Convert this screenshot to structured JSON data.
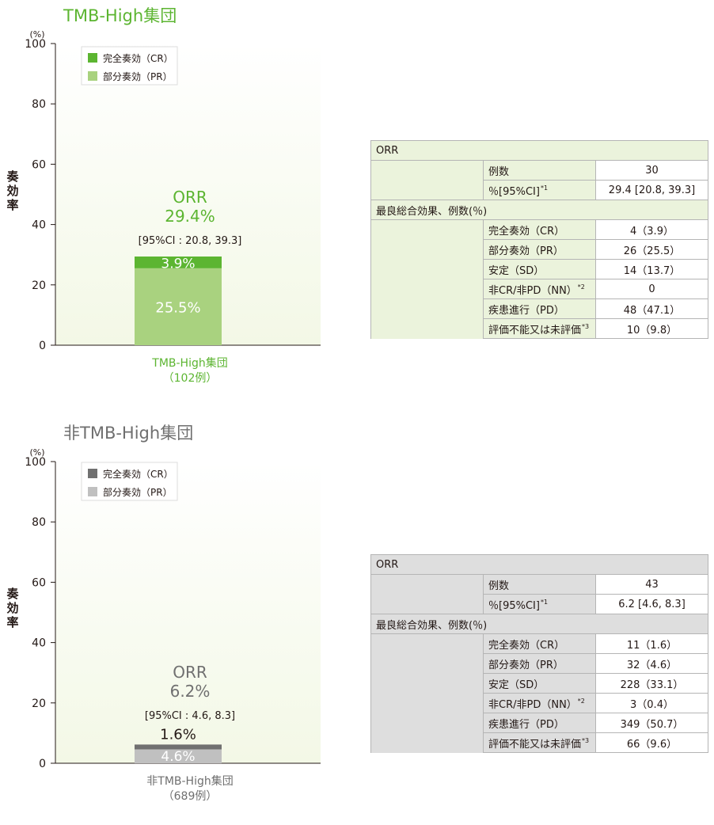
{
  "colors": {
    "top_cr": "#5cb531",
    "top_pr": "#a9d27f",
    "bottom_cr": "#707070",
    "bottom_pr": "#c0c0c0",
    "top_accent": "#5cb531",
    "bottom_accent": "#707070",
    "plot_bg_top": "#f3f8e6",
    "plot_bg_bottom": "#ffffff"
  },
  "chart_data": [
    {
      "type": "bar",
      "stacked": true,
      "title": "TMB-High集団",
      "ylabel": "奏効率",
      "y_unit": "(%)",
      "ylim": [
        0,
        100
      ],
      "yticks": [
        "0",
        "20",
        "40",
        "60",
        "80",
        "100"
      ],
      "categories": [
        "TMB-High集団"
      ],
      "category_sublabels": [
        "（102例）"
      ],
      "series": [
        {
          "name": "部分奏効（PR）",
          "values": [
            25.5
          ],
          "label": "25.5%"
        },
        {
          "name": "完全奏効（CR）",
          "values": [
            3.9
          ],
          "label": "3.9%"
        }
      ],
      "legend_position": "top-left",
      "annotation": {
        "orr_label": "ORR",
        "orr_value": "29.4%",
        "ci": "[95%CI : 20.8, 39.3]"
      }
    },
    {
      "type": "bar",
      "stacked": true,
      "title": "非TMB-High集団",
      "ylabel": "奏効率",
      "y_unit": "(%)",
      "ylim": [
        0,
        100
      ],
      "yticks": [
        "0",
        "20",
        "40",
        "60",
        "80",
        "100"
      ],
      "categories": [
        "非TMB-High集団"
      ],
      "category_sublabels": [
        "（689例）"
      ],
      "series": [
        {
          "name": "部分奏効（PR）",
          "values": [
            4.6
          ],
          "label": "4.6%"
        },
        {
          "name": "完全奏効（CR）",
          "values": [
            1.6
          ],
          "label": "1.6%"
        }
      ],
      "legend_position": "top-left",
      "annotation": {
        "orr_label": "ORR",
        "orr_value": "6.2%",
        "ci": "[95%CI : 4.6, 8.3]"
      }
    }
  ],
  "tables": {
    "top": {
      "section1": "ORR",
      "rows1": [
        {
          "label": "例数",
          "sup": "",
          "value": "30"
        },
        {
          "label": "％[95%CI]",
          "sup": "*1",
          "value": "29.4 [20.8, 39.3]"
        }
      ],
      "section2": "最良総合効果、例数(％)",
      "rows2": [
        {
          "label": "完全奏効（CR）",
          "sup": "",
          "value": "4（3.9）"
        },
        {
          "label": "部分奏効（PR）",
          "sup": "",
          "value": "26（25.5）"
        },
        {
          "label": "安定（SD）",
          "sup": "",
          "value": "14（13.7）"
        },
        {
          "label": "非CR/非PD（NN）",
          "sup": "*2",
          "value": "0"
        },
        {
          "label": "疾患進行（PD）",
          "sup": "",
          "value": "48（47.1）"
        },
        {
          "label": "評価不能又は未評価",
          "sup": "*3",
          "value": "10（9.8）"
        }
      ]
    },
    "bottom": {
      "section1": "ORR",
      "rows1": [
        {
          "label": "例数",
          "sup": "",
          "value": "43"
        },
        {
          "label": "％[95%CI]",
          "sup": "*1",
          "value": "6.2 [4.6, 8.3]"
        }
      ],
      "section2": "最良総合効果、例数(％)",
      "rows2": [
        {
          "label": "完全奏効（CR）",
          "sup": "",
          "value": "11（1.6）"
        },
        {
          "label": "部分奏効（PR）",
          "sup": "",
          "value": "32（4.6）"
        },
        {
          "label": "安定（SD）",
          "sup": "",
          "value": "228（33.1）"
        },
        {
          "label": "非CR/非PD（NN）",
          "sup": "*2",
          "value": "3（0.4）"
        },
        {
          "label": "疾患進行（PD）",
          "sup": "",
          "value": "349（50.7）"
        },
        {
          "label": "評価不能又は未評価",
          "sup": "*3",
          "value": "66（9.6）"
        }
      ]
    }
  }
}
